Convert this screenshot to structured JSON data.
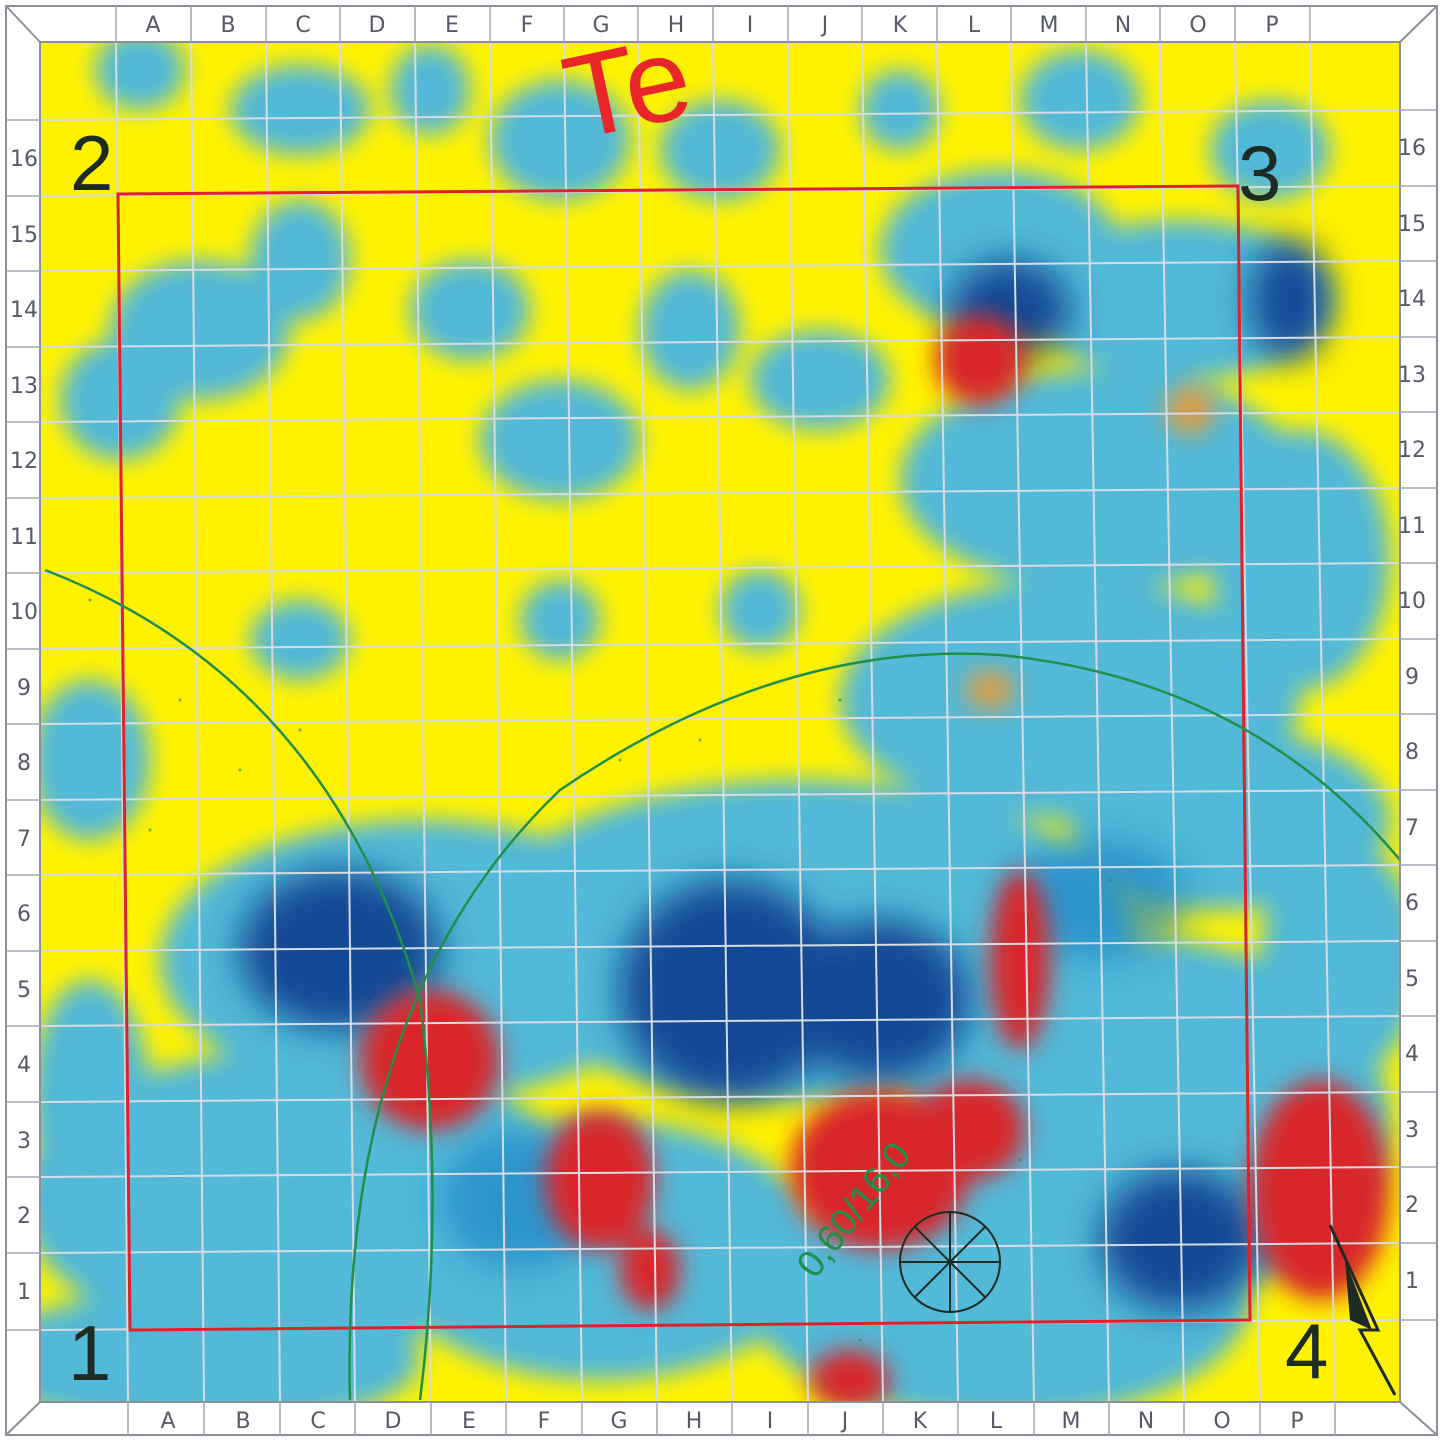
{
  "map": {
    "columns_top": [
      "A",
      "B",
      "C",
      "D",
      "E",
      "F",
      "G",
      "H",
      "I",
      "J",
      "K",
      "L",
      "M",
      "N",
      "O",
      "P"
    ],
    "columns_bottom": [
      "A",
      "B",
      "C",
      "D",
      "E",
      "F",
      "G",
      "H",
      "I",
      "J",
      "K",
      "L",
      "M",
      "N",
      "O",
      "P"
    ],
    "rows_left": [
      "16",
      "15",
      "14",
      "13",
      "12",
      "11",
      "10",
      "9",
      "8",
      "7",
      "6",
      "5",
      "4",
      "3",
      "2",
      "1"
    ],
    "rows_right": [
      "16",
      "15",
      "14",
      "13",
      "12",
      "11",
      "10",
      "9",
      "8",
      "7",
      "6",
      "5",
      "4",
      "3",
      "2",
      "1"
    ],
    "corner_markers": {
      "c1": "1",
      "c2": "2",
      "c3": "3",
      "c4": "4"
    },
    "handwritten_top": "Te",
    "measurement_label": "0,60/16,0",
    "colors": {
      "background": "#fff200",
      "light_blue": "#49b6e4",
      "mid_blue": "#1f86c8",
      "dark_blue": "#0b3d8e",
      "red": "#d8262a",
      "orange": "#f39a2b",
      "grid": "#d6dbe4",
      "survey_box": "#e0202a",
      "arc": "#1f8f4a"
    },
    "icons": {
      "compass": "compass-rose-icon",
      "north_arrow": "north-arrow-icon"
    }
  }
}
